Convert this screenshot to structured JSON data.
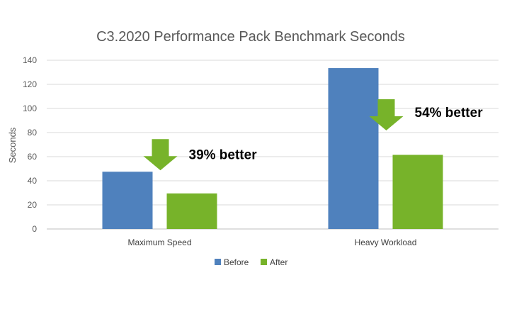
{
  "chart_data": {
    "type": "bar",
    "title": "C3.2020 Performance Pack Benchmark Seconds",
    "xlabel": "",
    "ylabel": "Seconds",
    "categories": [
      "Maximum Speed",
      "Heavy Workload"
    ],
    "series": [
      {
        "name": "Before",
        "color": "#4f81bd",
        "values": [
          47.5,
          133.5
        ]
      },
      {
        "name": "After",
        "color": "#77b32a",
        "values": [
          29.5,
          61.5
        ]
      }
    ],
    "ylim": [
      0,
      140
    ],
    "yticks": [
      0,
      20,
      40,
      60,
      80,
      100,
      120,
      140
    ],
    "grid": true,
    "legend": "bottom",
    "annotations": [
      {
        "text": "39% better",
        "category": "Maximum Speed",
        "arrow_icon": "down-arrow-icon"
      },
      {
        "text": "54% better",
        "category": "Heavy Workload",
        "arrow_icon": "down-arrow-icon"
      }
    ],
    "arrow_color": "#77b32a"
  }
}
